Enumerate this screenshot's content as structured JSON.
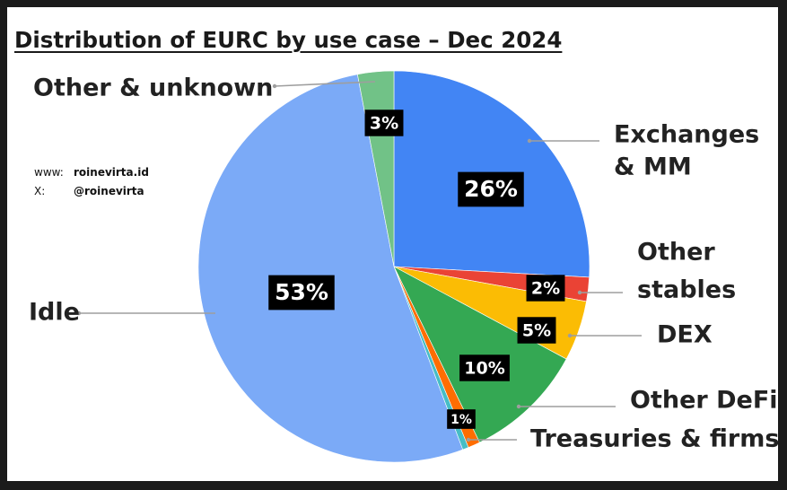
{
  "chart_data": {
    "type": "pie",
    "title": "Distribution of EURC by use case – Dec 2024",
    "slices": [
      {
        "name": "Exchanges & MM",
        "name_lines": [
          "Exchanges",
          "& MM"
        ],
        "value": 26,
        "label": "26%",
        "color": "#4285f4"
      },
      {
        "name": "Other stables",
        "name_lines": [
          "Other",
          "stables"
        ],
        "value": 2,
        "label": "2%",
        "color": "#ea4335"
      },
      {
        "name": "DEX",
        "name_lines": [
          "DEX"
        ],
        "value": 5,
        "label": "5%",
        "color": "#fbbc04"
      },
      {
        "name": "Other DeFi",
        "name_lines": [
          "Other DeFi"
        ],
        "value": 10,
        "label": "10%",
        "color": "#34a853"
      },
      {
        "name": "Treasuries & firms",
        "name_lines": [
          "Treasuries & firms"
        ],
        "value": 1,
        "label": "1%",
        "color": "#ff6d01"
      },
      {
        "name": "",
        "name_lines": [],
        "value": 0.5,
        "label": "",
        "color": "#46bdc6"
      },
      {
        "name": "Idle",
        "name_lines": [
          "Idle"
        ],
        "value": 53,
        "label": "53%",
        "color": "#7baaf7"
      },
      {
        "name": "Other & unknown",
        "name_lines": [
          "Other & unknown"
        ],
        "value": 3,
        "label": "3%",
        "color": "#71c287"
      }
    ]
  },
  "credits": [
    {
      "key": "www:",
      "value": "roinevirta.id"
    },
    {
      "key": "X:",
      "value": "@roinevirta"
    }
  ]
}
